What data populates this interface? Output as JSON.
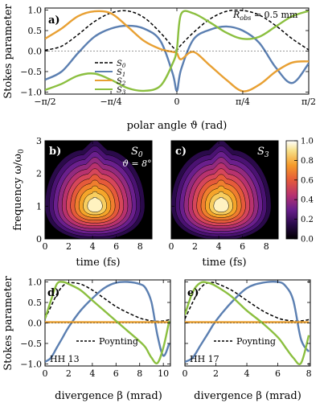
{
  "colors": {
    "S0": "#000000",
    "S1": "#5b7fb1",
    "S2": "#e8a033",
    "S3": "#8bbf3f",
    "bg": "#000000"
  },
  "panel_a": {
    "label": "a)",
    "robs_label": "R",
    "robs_sub": "obs",
    "robs_value": " = 0.5 mm",
    "ylabel": "Stokes parameter",
    "xlabel": "polar angle ϑ (rad)",
    "xticks": [
      "−π/2",
      "−π/4",
      "0",
      "π/4",
      "π/2"
    ],
    "yticks": [
      "1.0",
      "0.5",
      "0.0",
      "−0.5",
      "−1.0"
    ],
    "legend": [
      {
        "n": "S",
        "s": "0"
      },
      {
        "n": "S",
        "s": "1"
      },
      {
        "n": "S",
        "s": "2"
      },
      {
        "n": "S",
        "s": "3"
      }
    ]
  },
  "panel_b": {
    "label": "b)",
    "stokes": "S",
    "stokes_sub": "0",
    "angle": "ϑ = 8°",
    "xlabel": "time (fs)",
    "ylabel": "frequency ω/ω",
    "ylabel_sub": "0",
    "xticks": [
      "0",
      "2",
      "4",
      "6",
      "8"
    ],
    "yticks": [
      "0",
      "1",
      "2",
      "3"
    ]
  },
  "panel_c": {
    "label": "c)",
    "stokes": "S",
    "stokes_sub": "3",
    "xlabel": "time (fs)",
    "xticks": [
      "0",
      "2",
      "4",
      "6",
      "8"
    ]
  },
  "colorbar": {
    "ticks": [
      "1.0",
      "0.8",
      "0.6",
      "0.4",
      "0.2",
      "0.0"
    ]
  },
  "panel_d": {
    "label": "d)",
    "hh": "HH 13",
    "legend": "Poynting",
    "xlabel": "divergence β (mrad)",
    "ylabel": "Stokes parameter",
    "xticks": [
      "0",
      "2",
      "4",
      "6",
      "8",
      "10"
    ],
    "yticks": [
      "1.0",
      "0.5",
      "0.0",
      "−0.5",
      "−1.0"
    ]
  },
  "panel_e": {
    "label": "e)",
    "hh": "HH 17",
    "legend": "Poynting",
    "xlabel": "divergence β (mrad)",
    "xticks": [
      "0",
      "2",
      "4",
      "6",
      "8"
    ]
  },
  "chart_data": [
    {
      "type": "line",
      "panel": "a",
      "x": [
        -1.571,
        -1.374,
        -1.178,
        -0.982,
        -0.785,
        -0.589,
        -0.393,
        -0.196,
        -0.05,
        0,
        0.05,
        0.196,
        0.393,
        0.589,
        0.785,
        0.982,
        1.178,
        1.374,
        1.571
      ],
      "series": [
        {
          "name": "S0",
          "style": "dashed",
          "values": [
            0.02,
            0.12,
            0.4,
            0.72,
            0.93,
            0.98,
            0.82,
            0.45,
            0.1,
            0.03,
            0.15,
            0.45,
            0.78,
            0.97,
            0.99,
            0.88,
            0.62,
            0.3,
            0.03
          ]
        },
        {
          "name": "S1",
          "values": [
            -0.7,
            -0.5,
            -0.05,
            0.35,
            0.55,
            0.62,
            0.55,
            0.25,
            -0.55,
            -0.97,
            -0.45,
            0.28,
            0.52,
            0.6,
            0.5,
            0.2,
            -0.4,
            -0.78,
            -0.3
          ]
        },
        {
          "name": "S2",
          "values": [
            0.3,
            0.55,
            0.85,
            0.97,
            0.92,
            0.6,
            0.25,
            0.05,
            -0.02,
            -0.05,
            -0.2,
            -0.02,
            -0.35,
            -0.7,
            -0.98,
            -0.82,
            -0.5,
            -0.28,
            -0.25
          ]
        },
        {
          "name": "S3",
          "values": [
            -0.95,
            -0.8,
            -0.6,
            -0.55,
            -0.7,
            -0.9,
            -0.97,
            -0.85,
            -0.3,
            0.05,
            0.9,
            0.92,
            0.7,
            0.45,
            0.3,
            0.35,
            0.6,
            0.85,
            0.98
          ]
        }
      ],
      "xlim": [
        -1.571,
        1.571
      ],
      "ylim": [
        -1.05,
        1.05
      ]
    },
    {
      "type": "heatmap",
      "panel": "b",
      "xlim": [
        0,
        9
      ],
      "ylim": [
        0,
        3
      ],
      "center": [
        4.2,
        1.0
      ],
      "peak": 1.0,
      "levels": [
        0.1,
        0.2,
        0.3,
        0.4,
        0.5,
        0.6,
        0.7,
        0.8,
        0.9
      ]
    },
    {
      "type": "heatmap",
      "panel": "c",
      "xlim": [
        0,
        9
      ],
      "ylim": [
        0,
        3
      ],
      "center": [
        4.2,
        1.0
      ],
      "peak": 1.0,
      "levels": [
        0.1,
        0.2,
        0.3,
        0.4,
        0.5,
        0.6,
        0.7,
        0.8,
        0.9
      ]
    },
    {
      "type": "line",
      "panel": "d",
      "x": [
        0,
        0.5,
        1,
        1.5,
        2,
        3,
        4,
        5,
        6,
        7,
        8,
        8.5,
        9,
        9.5,
        10,
        10.5
      ],
      "series": [
        {
          "name": "Poynting",
          "style": "dashed",
          "values": [
            0.1,
            0.4,
            0.7,
            0.9,
            0.98,
            0.95,
            0.8,
            0.6,
            0.4,
            0.25,
            0.12,
            0.08,
            0.05,
            0.04,
            0.05,
            0.08
          ]
        },
        {
          "name": "S1",
          "values": [
            -0.95,
            -0.85,
            -0.6,
            -0.35,
            -0.1,
            0.3,
            0.6,
            0.85,
            0.98,
            1.0,
            0.95,
            0.85,
            0.5,
            -0.3,
            -0.8,
            -0.5
          ]
        },
        {
          "name": "S2",
          "values": [
            0.02,
            0.02,
            0.02,
            0.02,
            0.02,
            0.02,
            0.02,
            0.02,
            0.02,
            0.02,
            0.02,
            0.02,
            0.02,
            0.02,
            0.02,
            0.02
          ]
        },
        {
          "name": "S3",
          "values": [
            0.1,
            0.55,
            0.95,
            1.0,
            0.95,
            0.8,
            0.55,
            0.3,
            0.05,
            -0.2,
            -0.45,
            -0.6,
            -0.85,
            -0.98,
            -0.6,
            0.05
          ]
        }
      ],
      "xlim": [
        0,
        10.6
      ],
      "ylim": [
        -1.05,
        1.05
      ]
    },
    {
      "type": "line",
      "panel": "e",
      "x": [
        0,
        0.5,
        1,
        1.5,
        2,
        3,
        4,
        5,
        6,
        6.5,
        7,
        7.5,
        8
      ],
      "series": [
        {
          "name": "Poynting",
          "style": "dashed",
          "values": [
            0.1,
            0.5,
            0.85,
            0.98,
            0.97,
            0.8,
            0.55,
            0.3,
            0.12,
            0.07,
            0.05,
            0.05,
            0.08
          ]
        },
        {
          "name": "S1",
          "values": [
            -0.95,
            -0.85,
            -0.55,
            -0.25,
            0.05,
            0.5,
            0.85,
            0.98,
            1.0,
            0.9,
            0.55,
            -0.4,
            -0.7
          ]
        },
        {
          "name": "S2",
          "values": [
            0.02,
            0.02,
            0.02,
            0.02,
            0.02,
            0.02,
            0.02,
            0.02,
            0.02,
            0.02,
            0.02,
            0.02,
            0.02
          ]
        },
        {
          "name": "S3",
          "values": [
            0.2,
            0.75,
            0.98,
            0.98,
            0.9,
            0.65,
            0.3,
            0.0,
            -0.35,
            -0.6,
            -0.85,
            -0.98,
            -0.3
          ]
        }
      ],
      "xlim": [
        0,
        8.1
      ],
      "ylim": [
        -1.05,
        1.05
      ]
    }
  ]
}
